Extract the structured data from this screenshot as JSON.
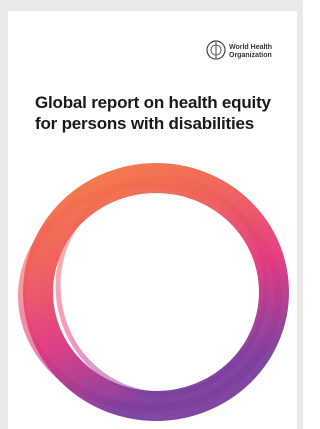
{
  "logo": {
    "line1": "World Health",
    "line2": "Organization"
  },
  "title": {
    "line1": "Global report on health equity",
    "line2": "for persons with disabilities"
  }
}
